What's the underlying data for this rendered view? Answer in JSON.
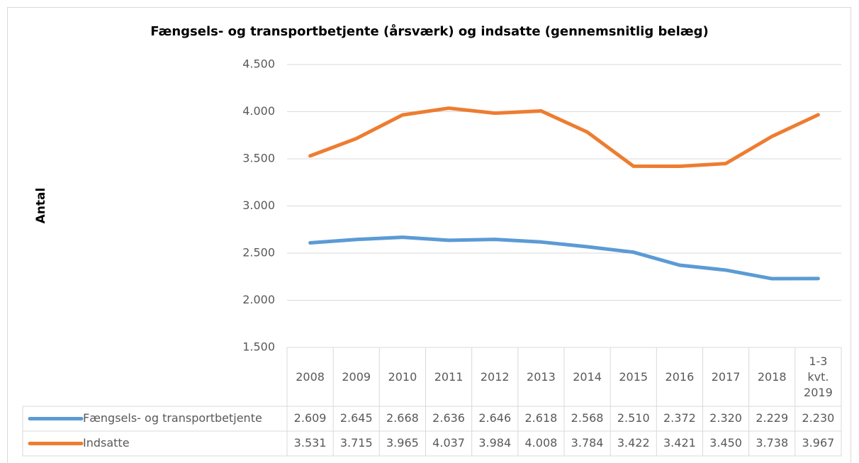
{
  "chart_data": {
    "type": "line",
    "title": "Fængsels- og transportbetjente (årsværk) og indsatte (gennemsnitlig belæg)",
    "y_label": "Antal",
    "categories": [
      "2008",
      "2009",
      "2010",
      "2011",
      "2012",
      "2013",
      "2014",
      "2015",
      "2016",
      "2017",
      "2018",
      "1-3 kvt. 2019"
    ],
    "series": [
      {
        "name": "Fængsels- og transportbetjente",
        "color": "#5b9bd5",
        "values": [
          2609,
          2645,
          2668,
          2636,
          2646,
          2618,
          2568,
          2510,
          2372,
          2320,
          2229,
          2230
        ],
        "value_labels": [
          "2.609",
          "2.645",
          "2.668",
          "2.636",
          "2.646",
          "2.618",
          "2.568",
          "2.510",
          "2.372",
          "2.320",
          "2.229",
          "2.230"
        ]
      },
      {
        "name": "Indsatte",
        "color": "#ed7d31",
        "values": [
          3531,
          3715,
          3965,
          4037,
          3984,
          4008,
          3784,
          3422,
          3421,
          3450,
          3738,
          3967
        ],
        "value_labels": [
          "3.531",
          "3.715",
          "3.965",
          "4.037",
          "3.984",
          "4.008",
          "3.784",
          "3.422",
          "3.421",
          "3.450",
          "3.738",
          "3.967"
        ]
      }
    ],
    "ylim": [
      1500,
      4500
    ],
    "yticks": [
      {
        "value": 1500,
        "label": "1.500"
      },
      {
        "value": 2000,
        "label": "2.000"
      },
      {
        "value": 2500,
        "label": "2.500"
      },
      {
        "value": 3000,
        "label": "3.000"
      },
      {
        "value": 3500,
        "label": "3.500"
      },
      {
        "value": 4000,
        "label": "4.000"
      },
      {
        "value": 4500,
        "label": "4.500"
      }
    ],
    "grid": true
  }
}
